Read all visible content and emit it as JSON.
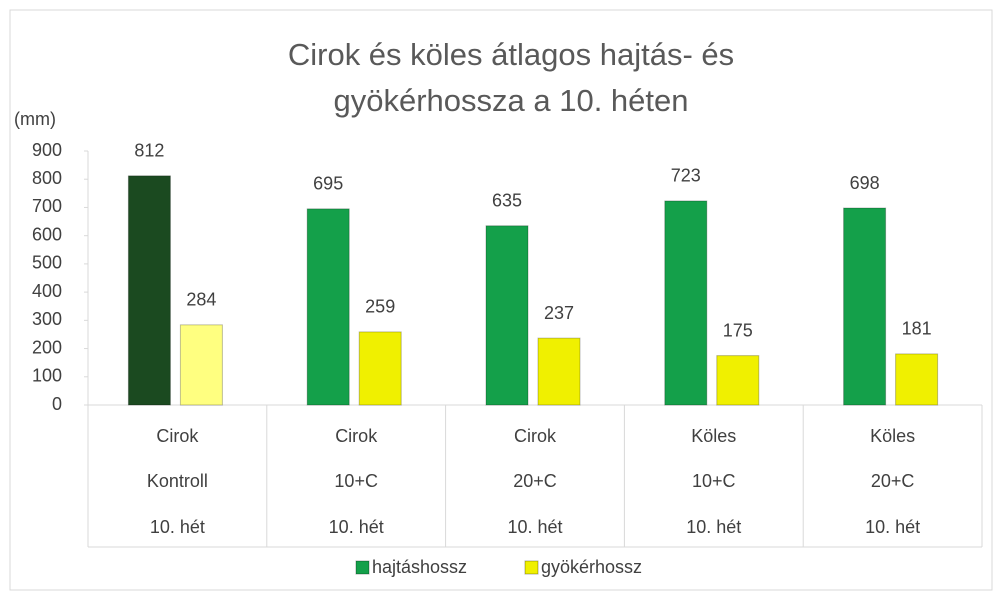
{
  "chart_data": {
    "type": "bar",
    "title": [
      "Cirok és köles átlagos hajtás- és",
      "gyökérhossza a 10. héten"
    ],
    "y_label": "(mm)",
    "categories": [
      [
        "Cirok",
        "Kontroll",
        "10. hét"
      ],
      [
        "Cirok",
        "10+C",
        "10. hét"
      ],
      [
        "Cirok",
        "20+C",
        "10. hét"
      ],
      [
        "Köles",
        "10+C",
        "10. hét"
      ],
      [
        "Köles",
        "20+C",
        "10. hét"
      ]
    ],
    "series": [
      {
        "name": "hajtáshossz",
        "color": "#14a04a",
        "point_colors": [
          "#1b4a20",
          "#14a04a",
          "#14a04a",
          "#14a04a",
          "#14a04a"
        ],
        "values": [
          812,
          695,
          635,
          723,
          698
        ]
      },
      {
        "name": "gyökérhossz",
        "color": "#f0f000",
        "point_colors": [
          "#ffff80",
          "#f0f000",
          "#f0f000",
          "#f0f000",
          "#f0f000"
        ],
        "values": [
          284,
          259,
          237,
          175,
          181
        ]
      }
    ],
    "ylim": [
      0,
      900
    ],
    "yticks": [
      0,
      100,
      200,
      300,
      400,
      500,
      600,
      700,
      800,
      900
    ],
    "grid": false,
    "legend": "bottom"
  }
}
